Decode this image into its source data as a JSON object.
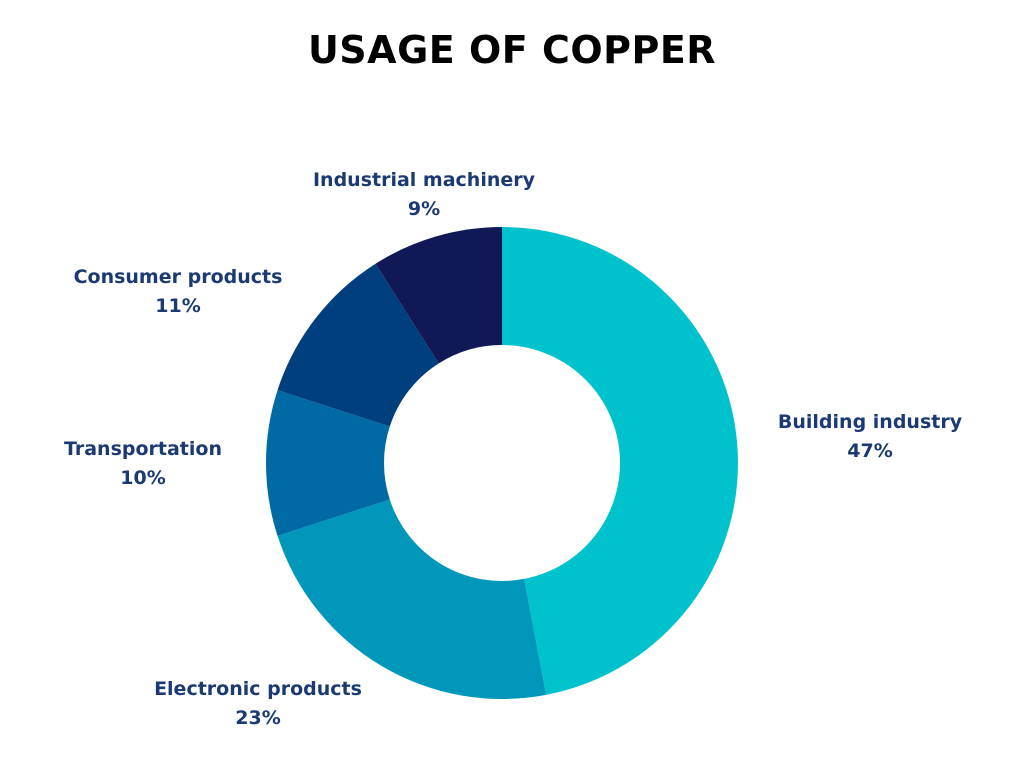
{
  "chart_data": {
    "type": "pie",
    "variant": "donut",
    "title": "USAGE OF COPPER",
    "grid": false,
    "legend": "none",
    "slices": [
      {
        "label": "Building industry",
        "value": 47,
        "value_label": "47%",
        "color": "#00c2cc"
      },
      {
        "label": "Electronic products",
        "value": 23,
        "value_label": "23%",
        "color": "#0097bb"
      },
      {
        "label": "Transportation",
        "value": 10,
        "value_label": "10%",
        "color": "#006aa5"
      },
      {
        "label": "Consumer products",
        "value": 11,
        "value_label": "11%",
        "color": "#003f7d"
      },
      {
        "label": "Industrial machinery",
        "value": 9,
        "value_label": "9%",
        "color": "#101856"
      }
    ]
  }
}
